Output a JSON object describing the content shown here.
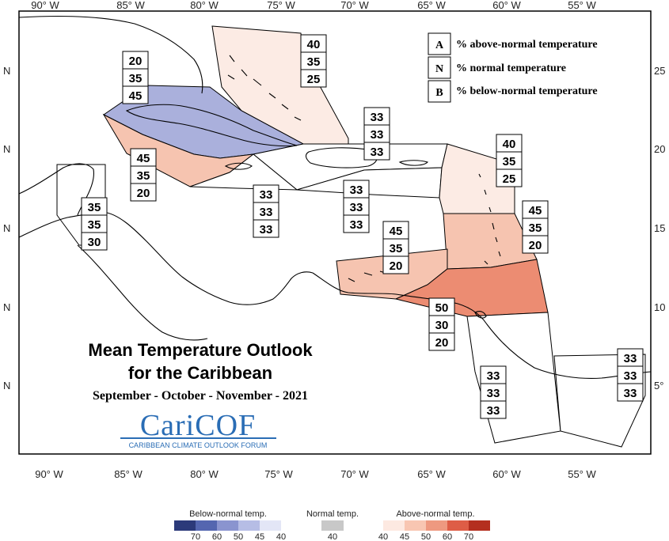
{
  "map": {
    "lon_ticks_top": [
      "90° W",
      "85° W",
      "80° W",
      "75° W",
      "70° W",
      "65° W",
      "60° W",
      "55° W"
    ],
    "lon_ticks_bottom": [
      "90° W",
      "85° W",
      "80° W",
      "75° W",
      "70° W",
      "65° W",
      "60° W",
      "55° W"
    ],
    "lat_ticks_left": [
      "N",
      "N",
      "N",
      "N",
      "N"
    ],
    "lat_ticks_right": [
      "25",
      "20",
      "15",
      "10",
      "5°"
    ]
  },
  "key": {
    "items": [
      {
        "letter": "A",
        "label": "% above-normal temperature"
      },
      {
        "letter": "N",
        "label": "% normal temperature"
      },
      {
        "letter": "B",
        "label": "% below-normal temperature"
      }
    ]
  },
  "title": {
    "line1": "Mean Temperature Outlook",
    "line2": "for the Caribbean",
    "season": "September - October - November - 2021"
  },
  "logo": {
    "name": "CariCOF",
    "subtitle": "CARIBBEAN CLIMATE OUTLOOK FORUM"
  },
  "regions": [
    {
      "name": "bahamas",
      "above": "40",
      "normal": "35",
      "below": "25",
      "color": "#fcebe4"
    },
    {
      "name": "cuba",
      "above": "20",
      "normal": "35",
      "below": "45",
      "color": "#aab0dc"
    },
    {
      "name": "cayman-jamaica",
      "above": "45",
      "normal": "35",
      "below": "20",
      "color": "#f6c4b0"
    },
    {
      "name": "hispaniola-north",
      "above": "33",
      "normal": "33",
      "below": "33",
      "color": "#ffffff"
    },
    {
      "name": "jamaica-south",
      "above": "33",
      "normal": "33",
      "below": "33",
      "color": "#ffffff"
    },
    {
      "name": "puerto-rico",
      "above": "33",
      "normal": "33",
      "below": "33",
      "color": "#ffffff"
    },
    {
      "name": "leeward-islands",
      "above": "40",
      "normal": "35",
      "below": "25",
      "color": "#fcebe4"
    },
    {
      "name": "windward-islands",
      "above": "45",
      "normal": "35",
      "below": "20",
      "color": "#f6c4b0"
    },
    {
      "name": "central-america-north",
      "above": "35",
      "normal": "35",
      "below": "30",
      "color": "#ffffff"
    },
    {
      "name": "abc-islands",
      "above": "45",
      "normal": "35",
      "below": "20",
      "color": "#f6c4b0"
    },
    {
      "name": "trinidad",
      "above": "50",
      "normal": "30",
      "below": "20",
      "color": "#ec8c72"
    },
    {
      "name": "guyana",
      "above": "33",
      "normal": "33",
      "below": "33",
      "color": "#ffffff"
    },
    {
      "name": "suriname-guiana",
      "above": "33",
      "normal": "33",
      "below": "33",
      "color": "#ffffff"
    }
  ],
  "scale": {
    "below_title": "Below-normal temp.",
    "normal_title": "Normal temp.",
    "above_title": "Above-normal temp.",
    "below_colors": [
      "#2c3a7a",
      "#5466b0",
      "#8a94cf",
      "#b6bde5",
      "#e3e6f6"
    ],
    "below_ticks": [
      "70",
      "60",
      "50",
      "45",
      "40"
    ],
    "normal_color": "#c8c8c8",
    "normal_tick": "40",
    "above_colors": [
      "#fde9e1",
      "#f8c6b2",
      "#ee9980",
      "#de5d46",
      "#b42f1f"
    ],
    "above_ticks": [
      "40",
      "45",
      "50",
      "60",
      "70"
    ]
  }
}
